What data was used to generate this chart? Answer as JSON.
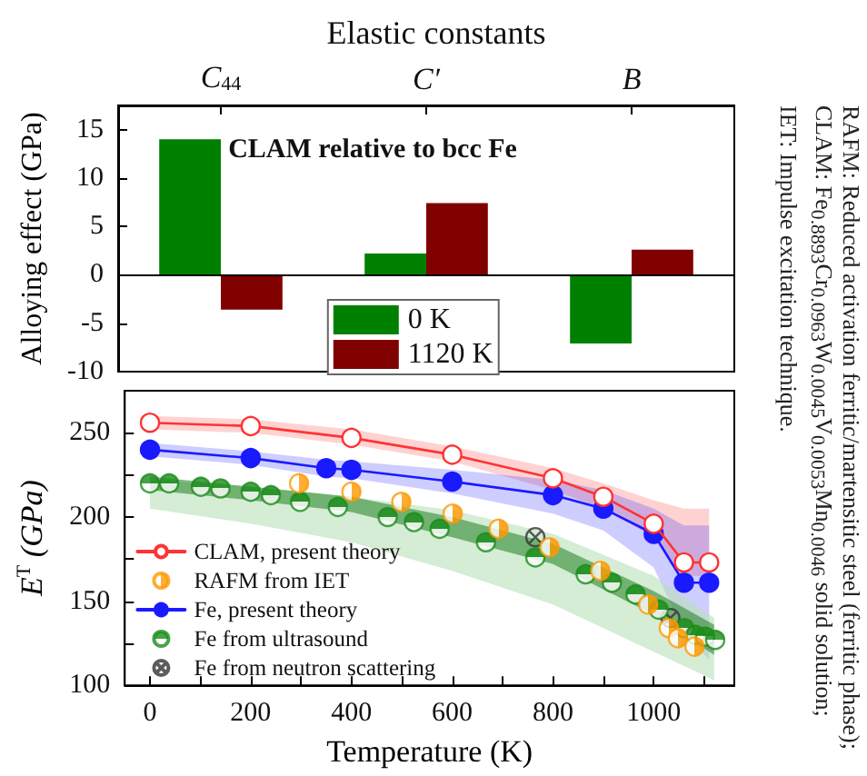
{
  "chart_data": [
    {
      "type": "bar",
      "title": "Elastic constants",
      "categories": [
        "C$_{44}$",
        "C′",
        "B"
      ],
      "ylabel": "Alloying effect (GPa)",
      "annotations": [
        "CLAM relative to bcc Fe"
      ],
      "series": [
        {
          "name": "0 K",
          "color": "#008000",
          "values": [
            14,
            2.2,
            -7.1
          ]
        },
        {
          "name": "1120 K",
          "color": "#800000",
          "values": [
            -3.6,
            7.4,
            2.6
          ]
        }
      ],
      "ylim": [
        -10,
        17.5
      ],
      "yticks": [
        -10,
        -5,
        0,
        5,
        10,
        15
      ],
      "ref_lines": [
        {
          "axis": "y",
          "value": 0
        }
      ],
      "legend": "bottom",
      "grid": false
    },
    {
      "type": "line",
      "xlabel": "Temperature (K)",
      "ylabel": "E$^{T}$ (GPa)",
      "annotations": [
        "RAFM: Reduced activation ferritic/martensitic steel (ferritic phase);",
        "CLAM: Fe$_{0.8893}$Cr$_{0.0963}$W$_{0.0045}$V$_{0.0053}$Mn$_{0.0046}$ solid solution;",
        "IET: Impulse excitation technique."
      ],
      "series": [
        {
          "name": "CLAM, present theory",
          "type": "line",
          "color": "#ff3333",
          "marker": "circle",
          "x": [
            0,
            200,
            400,
            600,
            800,
            900,
            1000,
            1060,
            1110
          ],
          "values": [
            256,
            254,
            247,
            237,
            223,
            212,
            196,
            173,
            173
          ],
          "lower": [
            252,
            250,
            243,
            233,
            216,
            205,
            188,
            165,
            165
          ],
          "upper": [
            260,
            258,
            252,
            242,
            229,
            220,
            210,
            205,
            205
          ]
        },
        {
          "name": "RAFM from IET",
          "type": "scatter",
          "color": "#ff9900",
          "marker": "circle",
          "x": [
            296,
            400,
            499,
            601,
            692,
            793,
            894,
            989,
            1030,
            1048,
            1081
          ],
          "values": [
            220,
            215,
            209,
            202,
            193,
            182,
            168,
            148,
            134,
            128,
            123
          ]
        },
        {
          "name": "Fe, present theory",
          "type": "line",
          "color": "#1a1aff",
          "marker": "circle",
          "x": [
            0,
            200,
            350,
            400,
            600,
            800,
            900,
            1000,
            1060,
            1110
          ],
          "values": [
            240,
            235,
            229,
            228,
            221,
            213,
            205,
            190,
            161,
            161
          ],
          "lower": [
            236,
            231,
            224,
            223,
            214,
            202,
            192,
            170,
            132,
            115
          ],
          "upper": [
            244,
            239,
            234,
            233,
            228,
            222,
            216,
            205,
            195,
            195
          ]
        },
        {
          "name": "Fe from ultrasound",
          "type": "scatter",
          "color": "#1a8c1a",
          "marker": "circle",
          "x": [
            0,
            38,
            101,
            140,
            200,
            240,
            298,
            373,
            472,
            524,
            575,
            667,
            765,
            865,
            917,
            964,
            1010,
            1061,
            1083,
            1102,
            1122
          ],
          "values": [
            220,
            220,
            218,
            217,
            215,
            213,
            209,
            206,
            200,
            197,
            193,
            185,
            176,
            166,
            161,
            154,
            145,
            134,
            130,
            129,
            127
          ]
        },
        {
          "name": "Fe from neutron scattering",
          "type": "scatter",
          "color": "#333333",
          "marker": "cross",
          "x": [
            765,
            1033
          ],
          "values": [
            188,
            140
          ]
        },
        {
          "type": "line",
          "color": "#b9dfb9",
          "x": [
            0,
            200,
            400,
            600,
            800,
            1000,
            1120
          ],
          "values": [
            null,
            null,
            null,
            null,
            null,
            null,
            null
          ],
          "lower": [
            205,
            196,
            185,
            168,
            148,
            120,
            103
          ],
          "upper": [
            222,
            218,
            212,
            204,
            190,
            165,
            140
          ]
        },
        {
          "type": "line",
          "color": "#2e8b2e",
          "x": [
            0,
            200,
            400,
            600,
            800,
            1000,
            1120
          ],
          "values": [
            null,
            null,
            null,
            null,
            null,
            null,
            null
          ],
          "lower": [
            216,
            210,
            203,
            188,
            172,
            142,
            118
          ],
          "upper": [
            224,
            218,
            212,
            200,
            184,
            156,
            136
          ]
        }
      ],
      "xlim": [
        -50,
        1160
      ],
      "xticks": [
        0,
        {
          "value": 100,
          "label": null
        },
        200,
        {
          "value": 300,
          "label": null
        },
        400,
        {
          "value": 500,
          "label": null
        },
        600,
        {
          "value": 700,
          "label": null
        },
        800,
        {
          "value": 900,
          "label": null
        },
        1000,
        {
          "value": 1100,
          "label": null
        }
      ],
      "ylim": [
        100,
        275
      ],
      "yticks": [
        100,
        {
          "value": 125,
          "label": null
        },
        150,
        {
          "value": 175,
          "label": null
        },
        200,
        {
          "value": 225,
          "label": null
        },
        250
      ],
      "legend": "bottom left",
      "grid": false
    }
  ]
}
